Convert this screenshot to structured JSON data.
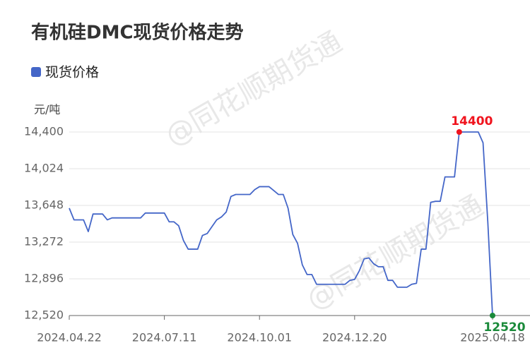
{
  "chart_data": {
    "type": "line",
    "title": "有机硅DMC现货价格走势",
    "y_unit": "元/吨",
    "watermark": "@同花顺期货通",
    "categories": [
      "2024.04.22",
      null,
      null,
      null,
      null,
      null,
      null,
      null,
      null,
      null,
      null,
      null,
      null,
      null,
      null,
      null,
      null,
      null,
      null,
      null,
      "2024.07.11",
      null,
      null,
      null,
      null,
      null,
      null,
      null,
      null,
      null,
      null,
      null,
      null,
      null,
      null,
      null,
      null,
      null,
      null,
      null,
      "2024.10.01",
      null,
      null,
      null,
      null,
      null,
      null,
      null,
      null,
      null,
      null,
      null,
      null,
      null,
      null,
      null,
      null,
      null,
      null,
      null,
      "2024.12.20",
      null,
      null,
      null,
      null,
      null,
      null,
      null,
      null,
      null,
      null,
      null,
      null,
      null,
      null,
      null,
      null,
      null,
      null,
      null,
      null,
      null,
      null,
      null,
      null,
      null,
      null,
      null,
      null,
      "2025.04.18"
    ],
    "series": [
      {
        "name": "现货价格",
        "color": "#4466c8",
        "values": [
          13620,
          13500,
          13500,
          13500,
          13380,
          13560,
          13560,
          13560,
          13500,
          13520,
          13520,
          13520,
          13520,
          13520,
          13520,
          13520,
          13570,
          13570,
          13570,
          13570,
          13570,
          13480,
          13480,
          13440,
          13290,
          13200,
          13200,
          13200,
          13340,
          13360,
          13430,
          13500,
          13530,
          13580,
          13740,
          13760,
          13760,
          13760,
          13760,
          13810,
          13840,
          13840,
          13840,
          13800,
          13760,
          13760,
          13620,
          13350,
          13260,
          13040,
          12940,
          12940,
          12840,
          12840,
          12840,
          12840,
          12840,
          12840,
          12840,
          12880,
          12890,
          12980,
          13100,
          13110,
          13050,
          13020,
          13020,
          12880,
          12880,
          12810,
          12810,
          12810,
          12840,
          12850,
          13200,
          13200,
          13680,
          13690,
          13690,
          13940,
          13940,
          13940,
          14400,
          14400,
          14400,
          14400,
          14400,
          14290,
          13480,
          12520
        ],
        "value_labels": [
          null,
          null,
          null,
          null,
          null,
          null,
          null,
          null,
          null,
          null,
          null,
          null,
          null,
          null,
          null,
          null,
          null,
          null,
          null,
          null,
          null,
          null,
          null,
          null,
          null,
          null,
          null,
          null,
          null,
          null,
          null,
          null,
          null,
          null,
          null,
          null,
          null,
          null,
          null,
          null,
          null,
          null,
          null,
          null,
          null,
          null,
          null,
          null,
          null,
          null,
          null,
          null,
          null,
          null,
          null,
          null,
          null,
          null,
          null,
          null,
          null,
          null,
          null,
          null,
          null,
          null,
          null,
          null,
          null,
          null,
          null,
          null,
          null,
          null,
          null,
          null,
          null,
          null,
          null,
          null,
          null,
          null,
          "14400",
          null,
          null,
          null,
          null,
          null,
          null,
          "12520"
        ]
      }
    ],
    "ylim": [
      12520,
      14400
    ],
    "yticks": [
      {
        "value": 12520,
        "label": "12,520"
      },
      {
        "value": 12896,
        "label": "12,896"
      },
      {
        "value": 13272,
        "label": "13,272"
      },
      {
        "value": 13648,
        "label": "13,648"
      },
      {
        "value": 14024,
        "label": "14,024"
      },
      {
        "value": 14400,
        "label": "14,400"
      }
    ],
    "grid": true,
    "legend": "top-left"
  }
}
